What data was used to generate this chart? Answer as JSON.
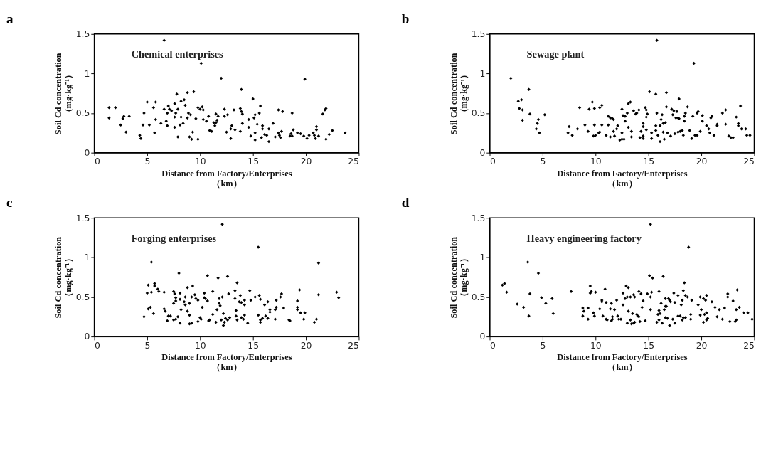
{
  "chart_data": [
    {
      "type": "scatter",
      "title": "a",
      "annotations": [
        "Chemical enterprises"
      ],
      "xlabel": "Distance from Factory/Enterprises\n（km）",
      "ylabel": "Soil Cd concentration\n（mg·kg⁻¹）",
      "xlim": [
        0,
        25
      ],
      "xticks": [
        0,
        5,
        10,
        15,
        20,
        25
      ],
      "ylim": [
        0,
        1.5
      ],
      "yticks": [
        0,
        0.5,
        1,
        1.5
      ],
      "marker": "diamond",
      "series": [
        {
          "color": "#000000",
          "x": [
            1.4,
            1.4,
            2.0,
            2.5,
            2.7,
            2.8,
            3.0,
            3.3,
            4.3,
            4.4,
            4.7,
            4.6,
            5.0,
            5.2,
            5.6,
            5.7,
            5.8,
            5.8,
            6.3,
            6.6,
            6.6,
            6.8,
            6.9,
            6.9,
            7.0,
            7.1,
            7.3,
            7.6,
            7.6,
            7.6,
            7.7,
            7.8,
            7.9,
            7.9,
            8.1,
            8.2,
            8.2,
            8.4,
            8.5,
            8.6,
            8.8,
            8.8,
            8.9,
            9.0,
            9.1,
            9.2,
            9.3,
            9.4,
            9.6,
            9.8,
            9.8,
            10.0,
            10.1,
            10.2,
            10.3,
            10.3,
            10.6,
            10.8,
            10.9,
            11.1,
            11.3,
            11.4,
            11.5,
            11.5,
            11.6,
            11.7,
            12.0,
            12.3,
            12.3,
            12.5,
            12.6,
            12.9,
            12.9,
            13.0,
            13.2,
            13.3,
            13.8,
            13.8,
            13.9,
            13.9,
            14.0,
            14.0,
            14.6,
            14.6,
            14.8,
            15.0,
            15.1,
            15.2,
            15.2,
            15.2,
            15.4,
            15.6,
            15.7,
            15.8,
            15.9,
            15.9,
            16.1,
            16.3,
            16.5,
            16.5,
            16.9,
            17.1,
            17.4,
            17.4,
            17.5,
            17.6,
            17.7,
            17.8,
            18.5,
            18.6,
            18.7,
            18.7,
            18.8,
            19.2,
            19.5,
            19.9,
            19.8,
            20.1,
            20.3,
            20.7,
            20.8,
            20.9,
            21.0,
            21.0,
            21.2,
            21.6,
            21.8,
            21.9,
            21.9,
            22.2,
            22.5,
            23.7
          ],
          "values": [
            0.57,
            0.44,
            0.57,
            0.35,
            0.43,
            0.46,
            0.26,
            0.46,
            0.22,
            0.18,
            0.5,
            0.35,
            0.64,
            0.35,
            0.57,
            0.25,
            0.42,
            0.64,
            0.37,
            0.55,
            1.42,
            0.4,
            0.5,
            0.34,
            0.59,
            0.55,
            0.53,
            0.62,
            0.32,
            0.45,
            0.5,
            0.74,
            0.2,
            0.55,
            0.35,
            0.45,
            0.65,
            0.37,
            0.67,
            0.6,
            0.76,
            0.44,
            0.5,
            0.2,
            0.48,
            0.17,
            0.26,
            0.77,
            0.43,
            0.17,
            0.57,
            0.55,
            1.13,
            0.58,
            0.54,
            0.42,
            0.4,
            0.46,
            0.28,
            0.27,
            0.38,
            0.34,
            0.38,
            0.49,
            0.41,
            0.46,
            0.94,
            0.55,
            0.46,
            0.26,
            0.48,
            0.18,
            0.3,
            0.34,
            0.54,
            0.29,
            0.27,
            0.56,
            0.8,
            0.52,
            0.49,
            0.37,
            0.42,
            0.32,
            0.21,
            0.68,
            0.44,
            0.25,
            0.16,
            0.48,
            0.36,
            0.5,
            0.59,
            0.19,
            0.34,
            0.3,
            0.23,
            0.22,
            0.14,
            0.3,
            0.37,
            0.2,
            0.54,
            0.25,
            0.22,
            0.19,
            0.27,
            0.52,
            0.21,
            0.24,
            0.5,
            0.21,
            0.29,
            0.25,
            0.24,
            0.93,
            0.21,
            0.18,
            0.22,
            0.25,
            0.22,
            0.18,
            0.33,
            0.29,
            0.21,
            0.49,
            0.54,
            0.56,
            0.17,
            0.23,
            0.28,
            0.25
          ]
        }
      ]
    },
    {
      "type": "scatter",
      "title": "b",
      "annotations": [
        "Sewage plant"
      ],
      "xlabel": "Distance from Factory/Enterprises\n（km）",
      "ylabel": "Soil Cd concentration\n（mg·kg⁻¹）",
      "xlim": [
        0,
        25
      ],
      "xticks": [
        0,
        5,
        10,
        15,
        20,
        25
      ],
      "ylim": [
        0,
        1.5
      ],
      "yticks": [
        0,
        0.5,
        1,
        1.5
      ],
      "marker": "diamond",
      "series": [
        {
          "color": "#000000",
          "x": [
            2.0,
            2.7,
            3.0,
            2.8,
            3.1,
            3.1,
            3.7,
            3.8,
            4.4,
            4.5,
            4.6,
            4.7,
            5.2,
            7.4,
            7.5,
            7.8,
            8.3,
            8.5,
            9.0,
            9.3,
            9.4,
            9.7,
            9.8,
            9.9,
            9.9,
            10.0,
            10.3,
            10.4,
            10.4,
            10.6,
            10.6,
            11.0,
            11.2,
            11.2,
            11.4,
            11.4,
            11.6,
            11.7,
            11.7,
            11.8,
            12.0,
            12.1,
            12.3,
            12.5,
            12.5,
            12.5,
            12.7,
            12.6,
            12.8,
            12.8,
            13.0,
            13.1,
            13.3,
            13.1,
            13.4,
            13.4,
            13.6,
            13.8,
            13.9,
            14.1,
            14.2,
            14.3,
            14.5,
            14.5,
            14.5,
            14.5,
            14.7,
            14.8,
            14.8,
            14.8,
            14.9,
            15.1,
            15.3,
            15.3,
            15.7,
            15.8,
            15.8,
            15.7,
            15.7,
            15.9,
            16.1,
            16.1,
            16.2,
            16.3,
            16.4,
            16.5,
            16.4,
            16.6,
            16.7,
            16.7,
            16.8,
            17.1,
            17.2,
            17.3,
            17.4,
            17.5,
            17.6,
            17.7,
            17.8,
            17.8,
            17.9,
            17.9,
            18.0,
            18.2,
            18.3,
            18.4,
            18.4,
            18.5,
            18.7,
            18.9,
            19.1,
            19.2,
            19.3,
            19.4,
            19.6,
            19.6,
            19.7,
            19.9,
            20.1,
            20.1,
            20.5,
            20.7,
            20.8,
            20.9,
            21.0,
            21.2,
            21.5,
            21.5,
            22.0,
            22.3,
            22.3,
            22.6,
            22.8,
            23.0,
            23.3,
            23.5,
            23.5,
            23.7,
            23.8,
            24.2,
            24.3,
            24.6
          ],
          "values": [
            0.94,
            0.65,
            0.67,
            0.56,
            0.54,
            0.41,
            0.8,
            0.49,
            0.3,
            0.37,
            0.42,
            0.25,
            0.48,
            0.25,
            0.33,
            0.22,
            0.3,
            0.57,
            0.35,
            0.27,
            0.55,
            0.64,
            0.21,
            0.56,
            0.35,
            0.22,
            0.25,
            0.26,
            0.57,
            0.6,
            0.35,
            0.22,
            0.46,
            0.35,
            0.2,
            0.44,
            0.43,
            0.42,
            0.27,
            0.21,
            0.3,
            0.34,
            0.16,
            0.17,
            0.55,
            0.25,
            0.17,
            0.47,
            0.4,
            0.46,
            0.5,
            0.62,
            0.64,
            0.32,
            0.27,
            0.2,
            0.53,
            0.49,
            0.5,
            0.54,
            0.19,
            0.27,
            0.18,
            0.37,
            0.33,
            0.21,
            0.57,
            0.54,
            0.45,
            0.29,
            0.49,
            0.77,
            0.18,
            0.25,
            0.74,
            1.42,
            0.5,
            0.28,
            0.34,
            0.22,
            0.14,
            0.34,
            0.42,
            0.48,
            0.26,
            0.17,
            0.37,
            0.38,
            0.76,
            0.58,
            0.25,
            0.21,
            0.55,
            0.48,
            0.53,
            0.24,
            0.44,
            0.52,
            0.44,
            0.26,
            0.68,
            0.43,
            0.27,
            0.28,
            0.22,
            0.4,
            0.46,
            0.5,
            0.58,
            0.28,
            0.18,
            0.46,
            1.13,
            0.22,
            0.22,
            0.5,
            0.52,
            0.27,
            0.47,
            0.4,
            0.34,
            0.3,
            0.25,
            0.44,
            0.46,
            0.22,
            0.36,
            0.34,
            0.5,
            0.54,
            0.36,
            0.21,
            0.19,
            0.19,
            0.45,
            0.34,
            0.37,
            0.59,
            0.3,
            0.3,
            0.22,
            0.22
          ]
        }
      ]
    },
    {
      "type": "scatter",
      "title": "c",
      "annotations": [
        "Forging enterprises"
      ],
      "xlabel": "Distance from Factory/Enterprises\n（km）",
      "ylabel": "Soil Cd concentration\n（mg·kg⁻¹）",
      "xlim": [
        0,
        25
      ],
      "xticks": [
        0,
        5,
        10,
        15,
        20,
        25
      ],
      "ylim": [
        0,
        1.5
      ],
      "yticks": [
        0,
        0.5,
        1,
        1.5
      ],
      "marker": "diamond",
      "series": [
        {
          "color": "#000000",
          "x": [
            4.7,
            5.0,
            5.1,
            5.1,
            5.3,
            5.4,
            5.4,
            5.6,
            5.7,
            5.7,
            6.0,
            6.1,
            6.6,
            6.6,
            6.7,
            6.9,
            7.0,
            7.2,
            7.5,
            7.5,
            7.6,
            7.5,
            7.7,
            7.7,
            7.7,
            8.0,
            7.9,
            8.1,
            8.1,
            8.1,
            8.2,
            8.5,
            8.6,
            8.6,
            8.8,
            8.8,
            9.0,
            9.0,
            9.0,
            9.2,
            9.2,
            9.3,
            9.5,
            9.6,
            9.8,
            9.8,
            10.0,
            10.1,
            10.2,
            10.4,
            10.4,
            10.5,
            10.7,
            10.7,
            10.8,
            10.9,
            11.2,
            11.2,
            11.5,
            11.6,
            11.7,
            11.8,
            11.8,
            11.9,
            12.0,
            12.1,
            12.1,
            12.2,
            12.2,
            12.3,
            12.4,
            12.6,
            12.6,
            12.7,
            12.8,
            13.3,
            13.3,
            13.4,
            13.4,
            13.5,
            13.5,
            13.7,
            13.8,
            13.9,
            13.9,
            14.1,
            14.2,
            14.2,
            14.2,
            14.5,
            14.7,
            14.8,
            15.2,
            15.5,
            15.5,
            15.6,
            15.7,
            15.7,
            15.7,
            15.9,
            16.1,
            16.2,
            16.4,
            16.4,
            16.6,
            16.6,
            17.1,
            17.1,
            17.2,
            17.2,
            17.6,
            17.7,
            17.9,
            18.4,
            18.5,
            19.2,
            19.2,
            19.2,
            19.4,
            19.5,
            19.8,
            19.9,
            20.8,
            21.0,
            21.2,
            21.2,
            22.9,
            23.1
          ],
          "values": [
            0.25,
            0.55,
            0.65,
            0.35,
            0.37,
            0.94,
            0.56,
            0.29,
            0.64,
            0.67,
            0.6,
            0.57,
            0.56,
            0.35,
            0.32,
            0.2,
            0.26,
            0.26,
            0.21,
            0.57,
            0.54,
            0.42,
            0.49,
            0.45,
            0.22,
            0.8,
            0.25,
            0.55,
            0.47,
            0.17,
            0.34,
            0.44,
            0.5,
            0.4,
            0.62,
            0.32,
            0.42,
            0.27,
            0.16,
            0.5,
            0.17,
            0.64,
            0.53,
            0.48,
            0.19,
            0.46,
            0.24,
            0.22,
            0.37,
            0.55,
            0.49,
            0.48,
            0.45,
            0.77,
            0.2,
            0.21,
            0.57,
            0.28,
            0.18,
            0.34,
            0.74,
            0.42,
            0.48,
            0.39,
            0.21,
            0.5,
            1.42,
            0.29,
            0.14,
            0.18,
            0.23,
            0.76,
            0.21,
            0.54,
            0.24,
            0.48,
            0.58,
            0.26,
            0.33,
            0.68,
            0.21,
            0.44,
            0.52,
            0.43,
            0.24,
            0.22,
            0.46,
            0.4,
            0.27,
            0.17,
            0.58,
            0.46,
            0.5,
            1.13,
            0.27,
            0.52,
            0.21,
            0.18,
            0.47,
            0.23,
            0.4,
            0.26,
            0.44,
            0.23,
            0.31,
            0.34,
            0.22,
            0.34,
            0.46,
            0.37,
            0.5,
            0.54,
            0.36,
            0.21,
            0.2,
            0.45,
            0.37,
            0.34,
            0.59,
            0.3,
            0.22,
            0.3,
            0.18,
            0.22,
            0.93,
            0.53,
            0.56,
            0.49
          ]
        }
      ]
    },
    {
      "type": "scatter",
      "title": "d",
      "annotations": [
        "Heavy engineering factory"
      ],
      "xlabel": "Distance from Factory/Enterprises\n（km）",
      "ylabel": "Soil Cd concentration\n（mg·kg⁻¹）",
      "xlim": [
        0,
        25
      ],
      "xticks": [
        0,
        5,
        10,
        15,
        20,
        25
      ],
      "ylim": [
        0,
        1.5
      ],
      "yticks": [
        0,
        0.5,
        1,
        1.5
      ],
      "marker": "diamond",
      "series": [
        {
          "color": "#000000",
          "x": [
            1.2,
            1.4,
            1.6,
            2.6,
            3.2,
            3.6,
            3.7,
            3.8,
            4.6,
            4.9,
            5.3,
            5.9,
            6.0,
            7.7,
            8.8,
            8.8,
            8.9,
            9.3,
            9.3,
            9.5,
            9.5,
            9.6,
            9.8,
            9.9,
            10.0,
            10.4,
            10.6,
            10.6,
            10.7,
            10.9,
            11.0,
            11.0,
            11.1,
            11.4,
            11.5,
            11.5,
            11.6,
            11.6,
            11.8,
            12.0,
            12.1,
            12.2,
            12.4,
            12.6,
            12.6,
            12.8,
            12.9,
            13.0,
            13.0,
            13.1,
            13.1,
            13.3,
            13.3,
            13.4,
            13.5,
            13.6,
            13.6,
            13.7,
            13.7,
            13.9,
            14.0,
            14.1,
            14.1,
            14.3,
            14.2,
            14.4,
            14.5,
            14.7,
            14.9,
            15.1,
            15.2,
            15.2,
            15.2,
            15.4,
            15.3,
            15.9,
            15.8,
            16.0,
            16.0,
            16.0,
            16.1,
            16.2,
            16.3,
            16.4,
            16.5,
            16.6,
            16.6,
            16.6,
            16.7,
            16.8,
            16.9,
            17.0,
            17.0,
            17.1,
            17.3,
            17.4,
            17.5,
            17.5,
            17.8,
            17.8,
            18.0,
            18.1,
            18.2,
            18.2,
            18.3,
            18.3,
            18.4,
            18.5,
            18.5,
            18.7,
            18.8,
            19.0,
            19.0,
            19.1,
            19.7,
            19.9,
            20.0,
            19.9,
            20.2,
            20.2,
            20.3,
            20.4,
            20.5,
            20.5,
            20.5,
            20.6,
            21.0,
            21.3,
            21.5,
            21.7,
            22.0,
            22.2,
            22.5,
            22.5,
            22.7,
            23.0,
            23.2,
            23.3,
            23.3,
            23.4,
            23.6,
            24.0,
            24.4,
            24.8
          ],
          "values": [
            0.65,
            0.67,
            0.56,
            0.41,
            0.37,
            0.94,
            0.26,
            0.54,
            0.8,
            0.49,
            0.42,
            0.48,
            0.29,
            0.57,
            0.36,
            0.26,
            0.32,
            0.22,
            0.36,
            0.64,
            0.55,
            0.57,
            0.3,
            0.26,
            0.56,
            0.35,
            0.46,
            0.44,
            0.26,
            0.6,
            0.43,
            0.22,
            0.21,
            0.35,
            0.42,
            0.2,
            0.25,
            0.22,
            0.34,
            0.46,
            0.26,
            0.22,
            0.22,
            0.55,
            0.4,
            0.48,
            0.64,
            0.17,
            0.5,
            0.62,
            0.32,
            0.5,
            0.21,
            0.16,
            0.29,
            0.17,
            0.53,
            0.18,
            0.5,
            0.28,
            0.26,
            0.57,
            0.25,
            0.54,
            0.19,
            0.37,
            0.45,
            0.2,
            0.54,
            0.77,
            1.42,
            0.34,
            0.5,
            0.74,
            0.56,
            0.28,
            0.18,
            0.57,
            0.21,
            0.33,
            0.29,
            0.42,
            0.17,
            0.76,
            0.34,
            0.38,
            0.48,
            0.24,
            0.38,
            0.23,
            0.48,
            0.14,
            0.46,
            0.44,
            0.22,
            0.55,
            0.17,
            0.43,
            0.52,
            0.26,
            0.26,
            0.4,
            0.46,
            0.21,
            0.58,
            0.24,
            0.68,
            0.24,
            0.52,
            0.5,
            1.13,
            0.22,
            0.28,
            0.46,
            0.4,
            0.5,
            0.34,
            0.27,
            0.48,
            0.18,
            0.28,
            0.46,
            0.52,
            0.21,
            0.3,
            0.23,
            0.44,
            0.37,
            0.25,
            0.34,
            0.22,
            0.36,
            0.5,
            0.54,
            0.19,
            0.45,
            0.19,
            0.21,
            0.34,
            0.59,
            0.37,
            0.3,
            0.3,
            0.22
          ]
        }
      ]
    }
  ]
}
